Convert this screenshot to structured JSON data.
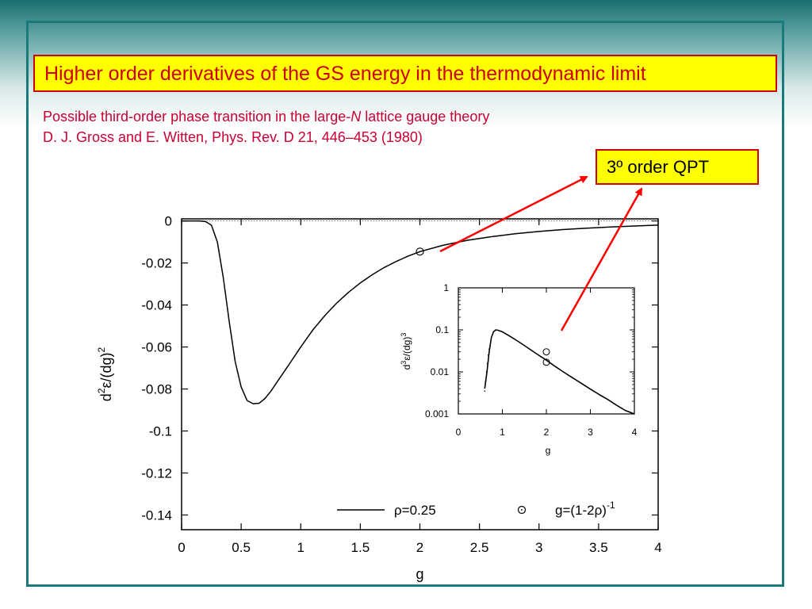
{
  "title": "Higher order derivatives of the GS energy in the thermodynamic limit",
  "reference": {
    "line1_pre": "Possible third-order phase transition in the large-",
    "line1_em": "N",
    "line1_post": " lattice gauge theory",
    "line2": "D. J. Gross and E. Witten, Phys. Rev. D 21, 446–453 (1980)"
  },
  "callout": {
    "text": "3º order QPT",
    "color": "#ff0000"
  },
  "colors": {
    "title_text": "#cc0000",
    "title_bg": "#ffff00",
    "frame": "#1a7a7a"
  },
  "chart_data": [
    {
      "type": "line",
      "xlabel": "g",
      "ylabel": "d2ε/(dg)2",
      "xlim": [
        0,
        4
      ],
      "ylim": [
        -0.147,
        0.001
      ],
      "xticks": [
        "0",
        "0.5",
        "1",
        "1.5",
        "2",
        "2.5",
        "3",
        "3.5",
        "4"
      ],
      "yticks": [
        "0",
        "-0.02",
        "-0.04",
        "-0.06",
        "-0.08",
        "-0.1",
        "-0.12",
        "-0.14"
      ],
      "series": [
        {
          "name": "ρ=0.25",
          "x": [
            0,
            0.15,
            0.2,
            0.25,
            0.3,
            0.35,
            0.4,
            0.45,
            0.5,
            0.55,
            0.6,
            0.65,
            0.7,
            0.75,
            0.8,
            0.9,
            1.0,
            1.1,
            1.2,
            1.3,
            1.4,
            1.5,
            1.6,
            1.7,
            1.8,
            1.9,
            2.0,
            2.2,
            2.4,
            2.6,
            2.8,
            3.0,
            3.2,
            3.4,
            3.6,
            3.8,
            4.0
          ],
          "y": [
            0,
            0,
            -0.0003,
            -0.002,
            -0.01,
            -0.027,
            -0.048,
            -0.067,
            -0.079,
            -0.0855,
            -0.087,
            -0.0868,
            -0.0845,
            -0.081,
            -0.0768,
            -0.0685,
            -0.06,
            -0.052,
            -0.0452,
            -0.0392,
            -0.034,
            -0.0295,
            -0.0256,
            -0.0222,
            -0.0193,
            -0.0168,
            -0.0146,
            -0.0115,
            -0.0092,
            -0.0075,
            -0.0061,
            -0.005,
            -0.0041,
            -0.0034,
            -0.0029,
            -0.0024,
            -0.002
          ]
        },
        {
          "name": "g=(1-2ρ)-1",
          "type": "scatter",
          "x": [
            2.0
          ],
          "y": [
            -0.0146
          ]
        }
      ],
      "legend": [
        "ρ=0.25",
        "g=(1-2ρ)-1"
      ],
      "reference_line_y": 0
    },
    {
      "type": "line",
      "xlabel": "g",
      "ylabel": "d3ε/(dg)3",
      "xlim": [
        0,
        4
      ],
      "ylim": [
        0.001,
        1
      ],
      "yscale": "log",
      "xticks": [
        "0",
        "1",
        "2",
        "3",
        "4"
      ],
      "yticks": [
        "0.001",
        "0.01",
        "0.1",
        "1"
      ],
      "series": [
        {
          "name": "d3ε/(dg)3",
          "x": [
            0.6,
            0.65,
            0.7,
            0.75,
            0.8,
            0.85,
            0.9,
            1.0,
            1.2,
            1.4,
            1.6,
            1.8,
            2.0,
            2.2,
            2.4,
            2.6,
            2.8,
            3.0,
            3.2,
            3.4,
            3.6,
            3.8,
            4.0
          ],
          "y": [
            0.004,
            0.01,
            0.03,
            0.065,
            0.09,
            0.1,
            0.098,
            0.09,
            0.068,
            0.05,
            0.036,
            0.026,
            0.019,
            0.0135,
            0.0098,
            0.0072,
            0.0053,
            0.0039,
            0.0029,
            0.0022,
            0.0016,
            0.0012,
            0.001
          ]
        },
        {
          "name": "markers",
          "type": "scatter",
          "x": [
            2.0,
            2.0
          ],
          "y": [
            0.03,
            0.017
          ]
        }
      ]
    }
  ]
}
